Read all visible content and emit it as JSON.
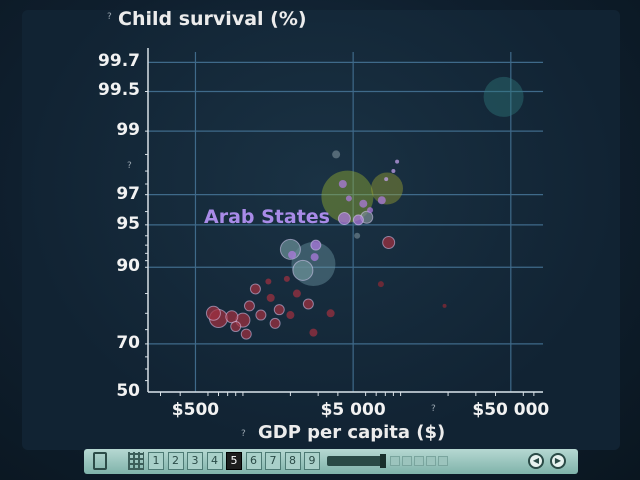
{
  "chart_data": {
    "type": "scatter",
    "title": "",
    "ylabel": "Child survival (%)",
    "xlabel": "GDP per capita ($)",
    "x_scale": "log",
    "y_scale": "logit",
    "xlim": [
      250,
      80000
    ],
    "ylim": [
      50,
      99.75
    ],
    "x_ticks": [
      {
        "value": 500,
        "label": "$500"
      },
      {
        "value": 5000,
        "label": "$5 000"
      },
      {
        "value": 50000,
        "label": "$50 000"
      }
    ],
    "y_ticks": [
      {
        "value": 99.7,
        "label": "99.7"
      },
      {
        "value": 99.5,
        "label": "99.5"
      },
      {
        "value": 99,
        "label": "99"
      },
      {
        "value": 97,
        "label": "97"
      },
      {
        "value": 95,
        "label": "95"
      },
      {
        "value": 90,
        "label": "90"
      },
      {
        "value": 70,
        "label": "70"
      },
      {
        "value": 50,
        "label": "50"
      }
    ],
    "grid": true,
    "annotations": [
      {
        "text": "Arab States"
      }
    ],
    "series": [
      {
        "color": "#b07ce0",
        "points": [
          {
            "x": 4600,
            "y": 96.9,
            "r": 26,
            "color": "#9bb530"
          },
          {
            "x": 8200,
            "y": 97.3,
            "r": 16,
            "color": "#a3a830"
          },
          {
            "x": 2800,
            "y": 90.5,
            "r": 22,
            "color": "#6f9aa6"
          },
          {
            "x": 2000,
            "y": 92.5,
            "r": 10,
            "color": "#6a8f96"
          },
          {
            "x": 2400,
            "y": 89.5,
            "r": 10,
            "color": "#6a8f96"
          },
          {
            "x": 45000,
            "y": 99.45,
            "r": 20,
            "color": "#2f7a7c"
          },
          {
            "x": 4300,
            "y": 97.5,
            "r": 4,
            "color": "#b07ce0"
          },
          {
            "x": 4700,
            "y": 96.8,
            "r": 3,
            "color": "#b07ce0"
          },
          {
            "x": 4400,
            "y": 95.5,
            "r": 6,
            "color": "#b07ce0"
          },
          {
            "x": 5400,
            "y": 95.4,
            "r": 5,
            "color": "#b07ce0"
          },
          {
            "x": 5800,
            "y": 96.5,
            "r": 4,
            "color": "#b07ce0"
          },
          {
            "x": 6400,
            "y": 96.1,
            "r": 3,
            "color": "#b07ce0"
          },
          {
            "x": 7600,
            "y": 96.7,
            "r": 4,
            "color": "#b07ce0"
          },
          {
            "x": 2900,
            "y": 93.0,
            "r": 5,
            "color": "#b07ce0"
          },
          {
            "x": 2850,
            "y": 91.5,
            "r": 4,
            "color": "#b07ce0"
          },
          {
            "x": 2050,
            "y": 91.8,
            "r": 4,
            "color": "#b07ce0"
          },
          {
            "x": 9500,
            "y": 98.3,
            "r": 2,
            "color": "#c7a4f0"
          },
          {
            "x": 9000,
            "y": 98.0,
            "r": 2,
            "color": "#c7a4f0"
          },
          {
            "x": 8100,
            "y": 97.7,
            "r": 2,
            "color": "#c7a4f0"
          },
          {
            "x": 3900,
            "y": 98.5,
            "r": 4,
            "color": "#6b7f8a"
          },
          {
            "x": 6100,
            "y": 95.6,
            "r": 6,
            "color": "#7a8a92"
          },
          {
            "x": 5300,
            "y": 94.0,
            "r": 3,
            "color": "#6b7f8a"
          },
          {
            "x": 8400,
            "y": 93.3,
            "r": 6,
            "color": "#a03040"
          },
          {
            "x": 7500,
            "y": 87.0,
            "r": 3,
            "color": "#8a2a35"
          },
          {
            "x": 19000,
            "y": 82.0,
            "r": 2,
            "color": "#8a2a35"
          },
          {
            "x": 650,
            "y": 80.0,
            "r": 7,
            "color": "#a03040"
          },
          {
            "x": 700,
            "y": 78.5,
            "r": 9,
            "color": "#a03040"
          },
          {
            "x": 850,
            "y": 79.0,
            "r": 6,
            "color": "#a03040"
          },
          {
            "x": 1000,
            "y": 78.0,
            "r": 7,
            "color": "#a03040"
          },
          {
            "x": 1100,
            "y": 82.0,
            "r": 5,
            "color": "#a03040"
          },
          {
            "x": 1300,
            "y": 79.5,
            "r": 5,
            "color": "#a03040"
          },
          {
            "x": 1500,
            "y": 84.0,
            "r": 4,
            "color": "#a03040"
          },
          {
            "x": 1700,
            "y": 81.0,
            "r": 5,
            "color": "#a03040"
          },
          {
            "x": 2000,
            "y": 79.5,
            "r": 4,
            "color": "#a03040"
          },
          {
            "x": 2200,
            "y": 85.0,
            "r": 4,
            "color": "#a03040"
          },
          {
            "x": 2600,
            "y": 82.5,
            "r": 5,
            "color": "#a03040"
          },
          {
            "x": 1200,
            "y": 86.0,
            "r": 5,
            "color": "#a03040"
          },
          {
            "x": 1450,
            "y": 87.5,
            "r": 3,
            "color": "#a03040"
          },
          {
            "x": 900,
            "y": 76.0,
            "r": 5,
            "color": "#a03040"
          },
          {
            "x": 1600,
            "y": 77.0,
            "r": 5,
            "color": "#a03040"
          },
          {
            "x": 2800,
            "y": 74.0,
            "r": 4,
            "color": "#a03040"
          },
          {
            "x": 1050,
            "y": 73.5,
            "r": 5,
            "color": "#a03040"
          },
          {
            "x": 3600,
            "y": 80.0,
            "r": 4,
            "color": "#a03040"
          },
          {
            "x": 1900,
            "y": 88.0,
            "r": 3,
            "color": "#a03040"
          }
        ]
      }
    ]
  },
  "player": {
    "pages": [
      "1",
      "2",
      "3",
      "4",
      "5",
      "6",
      "7",
      "8",
      "9"
    ],
    "active_page": "5",
    "prev_glyph": "◀",
    "next_glyph": "▶"
  }
}
